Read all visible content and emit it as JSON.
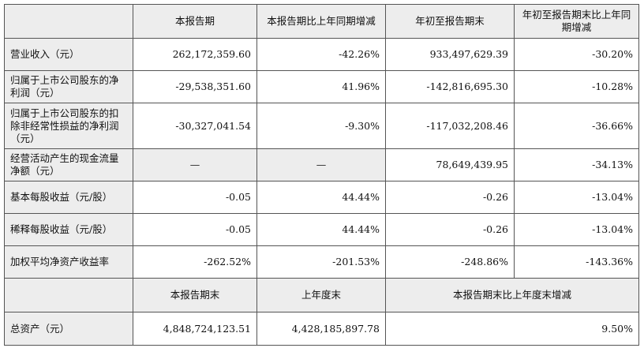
{
  "header": {
    "blank": "",
    "col1": "本报告期",
    "col2": "本报告期比上年同期增减",
    "col3": "年初至报告期末",
    "col4": "年初至报告期末比上年同期增减"
  },
  "rows": [
    {
      "label": "营业收入（元）",
      "v1": "262,172,359.60",
      "v2": "-42.26%",
      "v3": "933,497,629.39",
      "v4": "-30.20%"
    },
    {
      "label": "归属于上市公司股东的净利润（元）",
      "v1": "-29,538,351.60",
      "v2": "41.96%",
      "v3": "-142,816,695.30",
      "v4": "-10.28%"
    },
    {
      "label": "归属于上市公司股东的扣除非经常性损益的净利润（元）",
      "v1": "-30,327,041.54",
      "v2": "-9.30%",
      "v3": "-117,032,208.46",
      "v4": "-36.66%"
    },
    {
      "label": "经营活动产生的现金流量净额（元）",
      "v1": "—",
      "v2": "—",
      "v3": "78,649,439.95",
      "v4": "-34.13%"
    },
    {
      "label": "基本每股收益（元/股）",
      "v1": "-0.05",
      "v2": "44.44%",
      "v3": "-0.26",
      "v4": "-13.04%"
    },
    {
      "label": "稀释每股收益（元/股）",
      "v1": "-0.05",
      "v2": "44.44%",
      "v3": "-0.26",
      "v4": "-13.04%"
    },
    {
      "label": "加权平均净资产收益率",
      "v1": "-262.52%",
      "v2": "-201.53%",
      "v3": "-248.86%",
      "v4": "-143.36%"
    }
  ],
  "header2": {
    "blank": "",
    "col1": "本报告期末",
    "col2": "上年度末",
    "col3": "本报告期末比上年度末增减"
  },
  "assets": {
    "label": "总资产（元）",
    "v1": "4,848,724,123.51",
    "v2": "4,428,185,897.78",
    "v3": "9.50%"
  }
}
